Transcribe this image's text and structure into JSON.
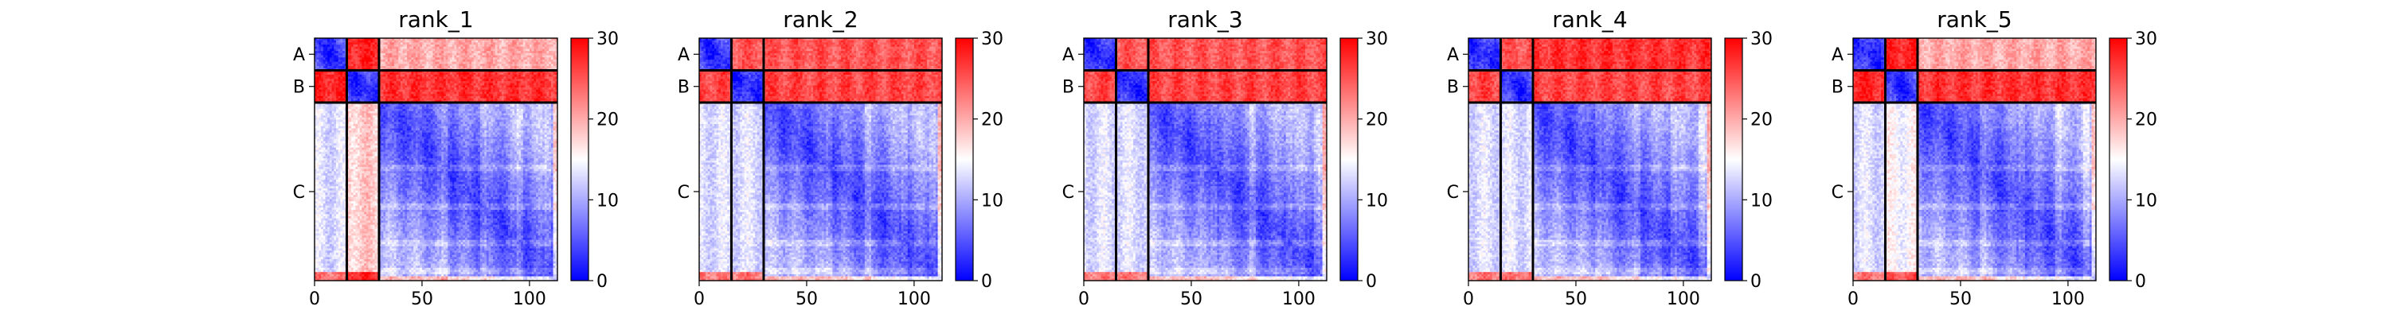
{
  "chart_data": [
    {
      "type": "heatmap",
      "title": "rank_1",
      "xticks": [
        "0",
        "50",
        "100"
      ],
      "x_tick_values": [
        0,
        50,
        100
      ],
      "xlim": [
        0,
        113
      ],
      "chains": [
        {
          "label": "A",
          "start": 0,
          "end": 15
        },
        {
          "label": "B",
          "start": 15,
          "end": 30
        },
        {
          "label": "C",
          "start": 30,
          "end": 113
        }
      ],
      "colorbar": {
        "ticks": [
          "0",
          "10",
          "20",
          "30"
        ],
        "tick_values": [
          0,
          10,
          20,
          30
        ],
        "range": [
          0,
          30
        ],
        "colormap": "bwr"
      },
      "interchain_error": {
        "A-B": 28,
        "B-A": 28,
        "A-C": 20,
        "C-A": 13,
        "B-C": 27,
        "C-B": 18
      }
    },
    {
      "type": "heatmap",
      "title": "rank_2",
      "xticks": [
        "0",
        "50",
        "100"
      ],
      "x_tick_values": [
        0,
        50,
        100
      ],
      "xlim": [
        0,
        113
      ],
      "chains": [
        {
          "label": "A",
          "start": 0,
          "end": 15
        },
        {
          "label": "B",
          "start": 15,
          "end": 30
        },
        {
          "label": "C",
          "start": 30,
          "end": 113
        }
      ],
      "colorbar": {
        "ticks": [
          "0",
          "10",
          "20",
          "30"
        ],
        "tick_values": [
          0,
          10,
          20,
          30
        ],
        "range": [
          0,
          30
        ],
        "colormap": "bwr"
      },
      "interchain_error": {
        "A-B": 25,
        "B-A": 26,
        "A-C": 25,
        "C-A": 13,
        "B-C": 26,
        "C-B": 13
      }
    },
    {
      "type": "heatmap",
      "title": "rank_3",
      "xticks": [
        "0",
        "50",
        "100"
      ],
      "x_tick_values": [
        0,
        50,
        100
      ],
      "xlim": [
        0,
        113
      ],
      "chains": [
        {
          "label": "A",
          "start": 0,
          "end": 15
        },
        {
          "label": "B",
          "start": 15,
          "end": 30
        },
        {
          "label": "C",
          "start": 30,
          "end": 113
        }
      ],
      "colorbar": {
        "ticks": [
          "0",
          "10",
          "20",
          "30"
        ],
        "tick_values": [
          0,
          10,
          20,
          30
        ],
        "range": [
          0,
          30
        ],
        "colormap": "bwr"
      },
      "interchain_error": {
        "A-B": 25,
        "B-A": 26,
        "A-C": 25,
        "C-A": 13,
        "B-C": 26,
        "C-B": 13
      }
    },
    {
      "type": "heatmap",
      "title": "rank_4",
      "xticks": [
        "0",
        "50",
        "100"
      ],
      "x_tick_values": [
        0,
        50,
        100
      ],
      "xlim": [
        0,
        113
      ],
      "chains": [
        {
          "label": "A",
          "start": 0,
          "end": 15
        },
        {
          "label": "B",
          "start": 15,
          "end": 30
        },
        {
          "label": "C",
          "start": 30,
          "end": 113
        }
      ],
      "colorbar": {
        "ticks": [
          "0",
          "10",
          "20",
          "30"
        ],
        "tick_values": [
          0,
          10,
          20,
          30
        ],
        "range": [
          0,
          30
        ],
        "colormap": "bwr"
      },
      "interchain_error": {
        "A-B": 25,
        "B-A": 26,
        "A-C": 27,
        "C-A": 13,
        "B-C": 26,
        "C-B": 13
      }
    },
    {
      "type": "heatmap",
      "title": "rank_5",
      "xticks": [
        "0",
        "50",
        "100"
      ],
      "x_tick_values": [
        0,
        50,
        100
      ],
      "xlim": [
        0,
        113
      ],
      "chains": [
        {
          "label": "A",
          "start": 0,
          "end": 15
        },
        {
          "label": "B",
          "start": 15,
          "end": 30
        },
        {
          "label": "C",
          "start": 30,
          "end": 113
        }
      ],
      "colorbar": {
        "ticks": [
          "0",
          "10",
          "20",
          "30"
        ],
        "tick_values": [
          0,
          10,
          20,
          30
        ],
        "range": [
          0,
          30
        ],
        "colormap": "bwr"
      },
      "interchain_error": {
        "A-B": 28,
        "B-A": 28,
        "A-C": 20,
        "C-A": 13,
        "B-C": 27,
        "C-B": 15
      }
    }
  ]
}
